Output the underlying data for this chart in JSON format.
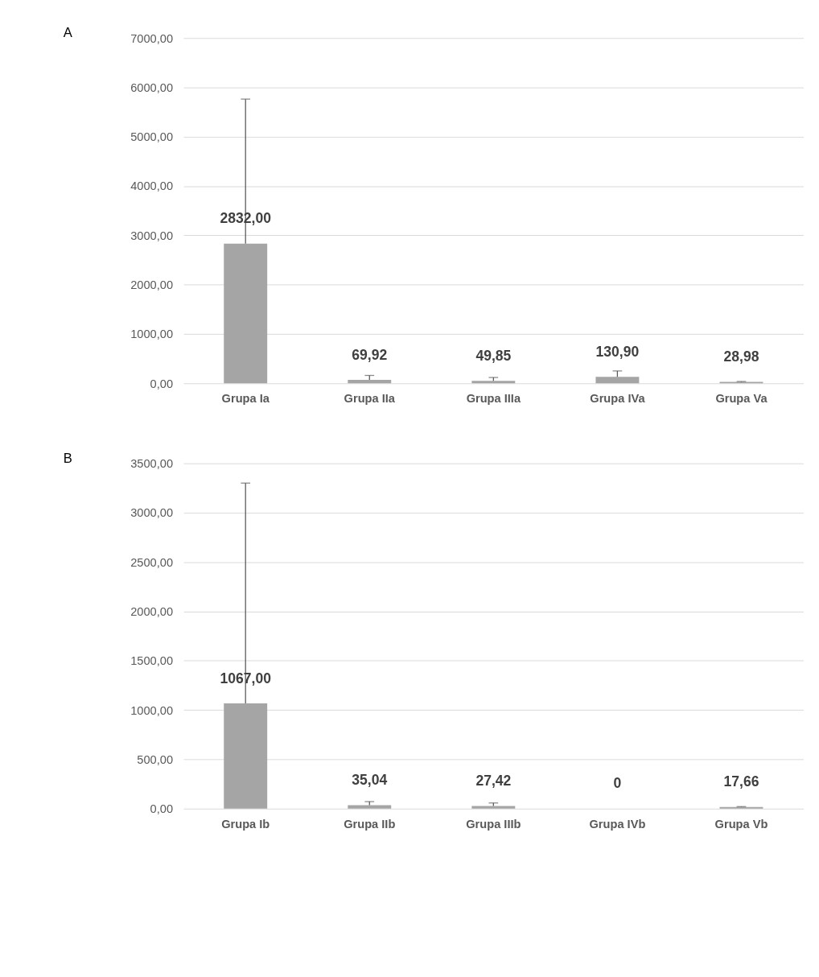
{
  "chart_data": [
    {
      "type": "bar",
      "title": "A",
      "categories": [
        "Grupa Ia",
        "Grupa IIa",
        "Grupa IIIa",
        "Grupa IVa",
        "Grupa Va"
      ],
      "values": [
        2832.0,
        69.92,
        49.85,
        130.9,
        28.98
      ],
      "errors": [
        2930,
        90,
        68,
        120,
        8
      ],
      "value_labels": [
        "2832,00",
        "69,92",
        "49,85",
        "130,90",
        "28,98"
      ],
      "color": "#a5a5a5",
      "ylim": [
        0,
        7000
      ],
      "yticks": [
        {
          "value": 0,
          "label": "0,00"
        },
        {
          "value": 1000,
          "label": "1000,00"
        },
        {
          "value": 2000,
          "label": "2000,00"
        },
        {
          "value": 3000,
          "label": "3000,00"
        },
        {
          "value": 4000,
          "label": "4000,00"
        },
        {
          "value": 5000,
          "label": "5000,00"
        },
        {
          "value": 6000,
          "label": "6000,00"
        },
        {
          "value": 7000,
          "label": "7000,00"
        }
      ],
      "grid": "y"
    },
    {
      "type": "bar",
      "title": "B",
      "categories": [
        "Grupa Ib",
        "Grupa IIb",
        "Grupa IIIb",
        "Grupa IVb",
        "Grupa Vb"
      ],
      "values": [
        1067.0,
        35.04,
        27.42,
        0,
        17.66
      ],
      "errors": [
        2233,
        36,
        30,
        null,
        3
      ],
      "value_labels": [
        "1067,00",
        "35,04",
        "27,42",
        "0",
        "17,66"
      ],
      "color": "#a5a5a5",
      "ylim": [
        0,
        3500
      ],
      "yticks": [
        {
          "value": 0,
          "label": "0,00"
        },
        {
          "value": 500,
          "label": "500,00"
        },
        {
          "value": 1000,
          "label": "1000,00"
        },
        {
          "value": 1500,
          "label": "1500,00"
        },
        {
          "value": 2000,
          "label": "2000,00"
        },
        {
          "value": 2500,
          "label": "2500,00"
        },
        {
          "value": 3000,
          "label": "3000,00"
        },
        {
          "value": 3500,
          "label": "3500,00"
        }
      ],
      "grid": "y"
    }
  ]
}
